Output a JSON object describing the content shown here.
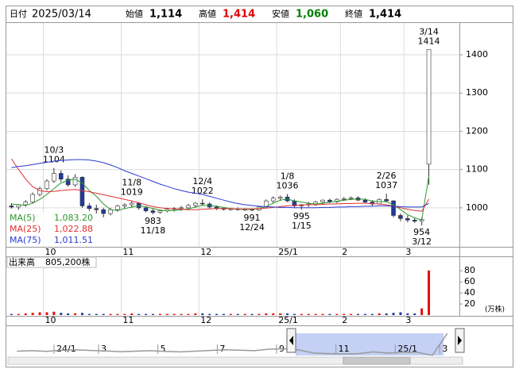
{
  "header": {
    "date_label": "日付",
    "date": "2025/03/14",
    "items": [
      {
        "label": "始値",
        "value": "1,114",
        "color": "#000000"
      },
      {
        "label": "高値",
        "value": "1,414",
        "color": "#e00000"
      },
      {
        "label": "安値",
        "value": "1,060",
        "color": "#008000"
      },
      {
        "label": "終値",
        "value": "1,414",
        "color": "#000000"
      }
    ]
  },
  "chart_data": [
    {
      "type": "candlestick",
      "categories": [
        null,
        null,
        null,
        null,
        null,
        "10",
        null,
        null,
        null,
        null,
        null,
        null,
        null,
        null,
        null,
        null,
        "11",
        null,
        null,
        null,
        null,
        null,
        null,
        null,
        null,
        null,
        null,
        "12",
        null,
        null,
        null,
        null,
        null,
        null,
        null,
        null,
        null,
        null,
        "25/1",
        null,
        null,
        null,
        null,
        null,
        null,
        null,
        null,
        "2",
        null,
        null,
        null,
        null,
        null,
        null,
        null,
        null,
        "3",
        null,
        null,
        null
      ],
      "open": [
        1005,
        1002,
        1008,
        1015,
        1035,
        1050,
        1070,
        1090,
        1075,
        1060,
        1080,
        1005,
        998,
        995,
        985,
        995,
        1005,
        1008,
        1012,
        1000,
        992,
        988,
        992,
        996,
        998,
        1000,
        1006,
        1012,
        1010,
        1002,
        998,
        996,
        997,
        995,
        996,
        994,
        1002,
        1018,
        1025,
        1028,
        1018,
        1005,
        1008,
        1010,
        1015,
        1020,
        1016,
        1022,
        1024,
        1026,
        1020,
        1015,
        1010,
        1022,
        1018,
        980,
        972,
        968,
        965,
        1114
      ],
      "high": [
        1012,
        1010,
        1020,
        1040,
        1055,
        1075,
        1104,
        1098,
        1085,
        1088,
        1082,
        1012,
        1008,
        1000,
        1000,
        1008,
        1012,
        1019,
        1015,
        1004,
        998,
        995,
        1000,
        1002,
        1005,
        1010,
        1015,
        1022,
        1014,
        1006,
        1002,
        1000,
        1001,
        999,
        998,
        1005,
        1022,
        1030,
        1032,
        1036,
        1022,
        1010,
        1015,
        1018,
        1022,
        1024,
        1025,
        1028,
        1030,
        1030,
        1025,
        1020,
        1025,
        1037,
        1020,
        985,
        980,
        975,
        975,
        1414
      ],
      "low": [
        998,
        995,
        1003,
        1012,
        1030,
        1045,
        1065,
        1068,
        1055,
        1055,
        1000,
        992,
        985,
        975,
        980,
        990,
        998,
        1000,
        995,
        988,
        983,
        984,
        988,
        990,
        992,
        996,
        1000,
        1006,
        998,
        994,
        993,
        993,
        993,
        992,
        991,
        992,
        1000,
        1012,
        1018,
        1015,
        1000,
        995,
        1002,
        1005,
        1010,
        1012,
        1012,
        1018,
        1020,
        1018,
        1012,
        1005,
        1008,
        1015,
        975,
        965,
        962,
        960,
        954,
        1060
      ],
      "close": [
        1002,
        1008,
        1015,
        1035,
        1050,
        1070,
        1090,
        1075,
        1060,
        1080,
        1005,
        998,
        995,
        985,
        995,
        1005,
        1008,
        1012,
        1000,
        992,
        988,
        992,
        996,
        998,
        1000,
        1006,
        1012,
        1010,
        1002,
        998,
        996,
        997,
        995,
        996,
        994,
        1002,
        1018,
        1025,
        1028,
        1018,
        1005,
        1008,
        1010,
        1015,
        1020,
        1016,
        1022,
        1024,
        1026,
        1020,
        1015,
        1010,
        1022,
        1018,
        980,
        972,
        968,
        965,
        970,
        1414
      ],
      "high_marks": [
        null,
        null,
        null,
        null,
        null,
        null,
        "10/3",
        null,
        null,
        null,
        null,
        null,
        null,
        null,
        null,
        null,
        null,
        "11/8",
        null,
        null,
        null,
        null,
        null,
        null,
        null,
        null,
        null,
        "12/4",
        null,
        null,
        null,
        null,
        null,
        null,
        null,
        null,
        null,
        null,
        null,
        "1/8",
        null,
        null,
        null,
        null,
        null,
        null,
        null,
        null,
        null,
        null,
        null,
        null,
        null,
        "2/26",
        null,
        null,
        null,
        null,
        null,
        "3/14"
      ],
      "low_marks": [
        null,
        null,
        null,
        null,
        null,
        null,
        null,
        null,
        null,
        null,
        null,
        null,
        null,
        null,
        null,
        null,
        null,
        null,
        null,
        null,
        "11/18",
        null,
        null,
        null,
        null,
        null,
        null,
        null,
        null,
        null,
        null,
        null,
        null,
        null,
        "12/24",
        null,
        null,
        null,
        null,
        null,
        null,
        "1/15",
        null,
        null,
        null,
        null,
        null,
        null,
        null,
        null,
        null,
        null,
        null,
        null,
        null,
        null,
        null,
        null,
        "3/12",
        null
      ],
      "up_color": "#ffffff",
      "down_color": "#1f3a9e",
      "ylim": [
        898,
        1481
      ],
      "yticks": [
        1000,
        1100,
        1200,
        1300,
        1400
      ],
      "grid": true,
      "series": [
        {
          "name": "MA(5)",
          "color": "#2a9a2a",
          "legend_value": "1,083.20",
          "values": [
            1010,
            1008,
            1006,
            1012,
            1022,
            1035,
            1050,
            1065,
            1072,
            1075,
            1065,
            1045,
            1030,
            1010,
            995,
            993,
            998,
            1002,
            1005,
            1003,
            998,
            994,
            992,
            993,
            995,
            997,
            1002,
            1006,
            1006,
            1004,
            1001,
            998,
            996,
            996,
            996,
            998,
            1003,
            1012,
            1020,
            1023,
            1018,
            1015,
            1012,
            1010,
            1012,
            1015,
            1017,
            1020,
            1022,
            1023,
            1022,
            1018,
            1016,
            1016,
            1008,
            995,
            982,
            974,
            968,
            1083.2
          ]
        },
        {
          "name": "MA(25)",
          "color": "#e03030",
          "legend_value": "1,022.88",
          "values": [
            1128,
            1100,
            1075,
            1055,
            1045,
            1042,
            1043,
            1045,
            1047,
            1048,
            1045,
            1042,
            1038,
            1034,
            1030,
            1026,
            1022,
            1018,
            1013,
            1008,
            1003,
            1000,
            998,
            997,
            996,
            995,
            995,
            996,
            997,
            998,
            998,
            998,
            997,
            997,
            997,
            998,
            999,
            1001,
            1003,
            1005,
            1006,
            1007,
            1008,
            1008,
            1009,
            1010,
            1010,
            1011,
            1011,
            1012,
            1012,
            1011,
            1010,
            1008,
            1004,
            1000,
            996,
            993,
            991,
            1022.88
          ]
        },
        {
          "name": "MA(75)",
          "color": "#2a3ad0",
          "legend_value": "1,011.51",
          "values": [
            1105,
            1108,
            1110,
            1113,
            1116,
            1119,
            1122,
            1124,
            1125,
            1126,
            1126,
            1125,
            1122,
            1118,
            1112,
            1105,
            1097,
            1090,
            1083,
            1076,
            1069,
            1062,
            1056,
            1050,
            1045,
            1041,
            1038,
            1035,
            1030,
            1025,
            1020,
            1015,
            1011,
            1008,
            1006,
            1004,
            1003,
            1002,
            1001,
            1001,
            1000,
            1000,
            1000,
            1000,
            1001,
            1001,
            1002,
            1002,
            1003,
            1003,
            1004,
            1004,
            1005,
            1005,
            1004,
            1003,
            1002,
            1002,
            1002,
            1011.51
          ]
        }
      ]
    },
    {
      "type": "bar",
      "label": "出来高",
      "value_label": "805,200株",
      "unit": "(万株)",
      "categories": [
        null,
        null,
        null,
        null,
        null,
        "10",
        null,
        null,
        null,
        null,
        null,
        null,
        null,
        null,
        null,
        null,
        "11",
        null,
        null,
        null,
        null,
        null,
        null,
        null,
        null,
        null,
        null,
        "12",
        null,
        null,
        null,
        null,
        null,
        null,
        null,
        null,
        null,
        null,
        "25/1",
        null,
        null,
        null,
        null,
        null,
        null,
        null,
        null,
        "2",
        null,
        null,
        null,
        null,
        null,
        null,
        null,
        null,
        "3",
        null,
        null,
        null
      ],
      "values": [
        2,
        2,
        3,
        4,
        5,
        5,
        6,
        4,
        3,
        3,
        4,
        2,
        2,
        2,
        2,
        2,
        2,
        3,
        2,
        2,
        2,
        2,
        2,
        2,
        2,
        2,
        3,
        3,
        2,
        2,
        2,
        2,
        2,
        2,
        2,
        2,
        3,
        3,
        3,
        3,
        2,
        2,
        2,
        2,
        2,
        2,
        2,
        2,
        2,
        2,
        2,
        2,
        3,
        3,
        4,
        5,
        3,
        3,
        12,
        80.52
      ],
      "up_color": "#e01010",
      "down_color": "#1f3a9e",
      "ylim": [
        0,
        86
      ],
      "yticks": [
        20,
        40,
        60,
        80
      ]
    },
    {
      "type": "line",
      "categories": [
        null,
        null,
        null,
        "24/1",
        null,
        null,
        "3",
        null,
        null,
        null,
        "5",
        null,
        null,
        null,
        "7",
        null,
        null,
        null,
        "9",
        null,
        null,
        null,
        "11",
        null,
        null,
        null,
        "25/1",
        null,
        null,
        "3"
      ],
      "values": [
        1050,
        1060,
        1045,
        1070,
        1080,
        1065,
        1055,
        1040,
        1050,
        1060,
        1045,
        1035,
        1050,
        1065,
        1080,
        1070,
        1060,
        1090,
        1100,
        1075,
        1010,
        1000,
        995,
        1000,
        1035,
        1010,
        1020,
        1025,
        965,
        1414
      ],
      "color": "#9a9a9a",
      "ylim": [
        960,
        1450
      ]
    }
  ]
}
